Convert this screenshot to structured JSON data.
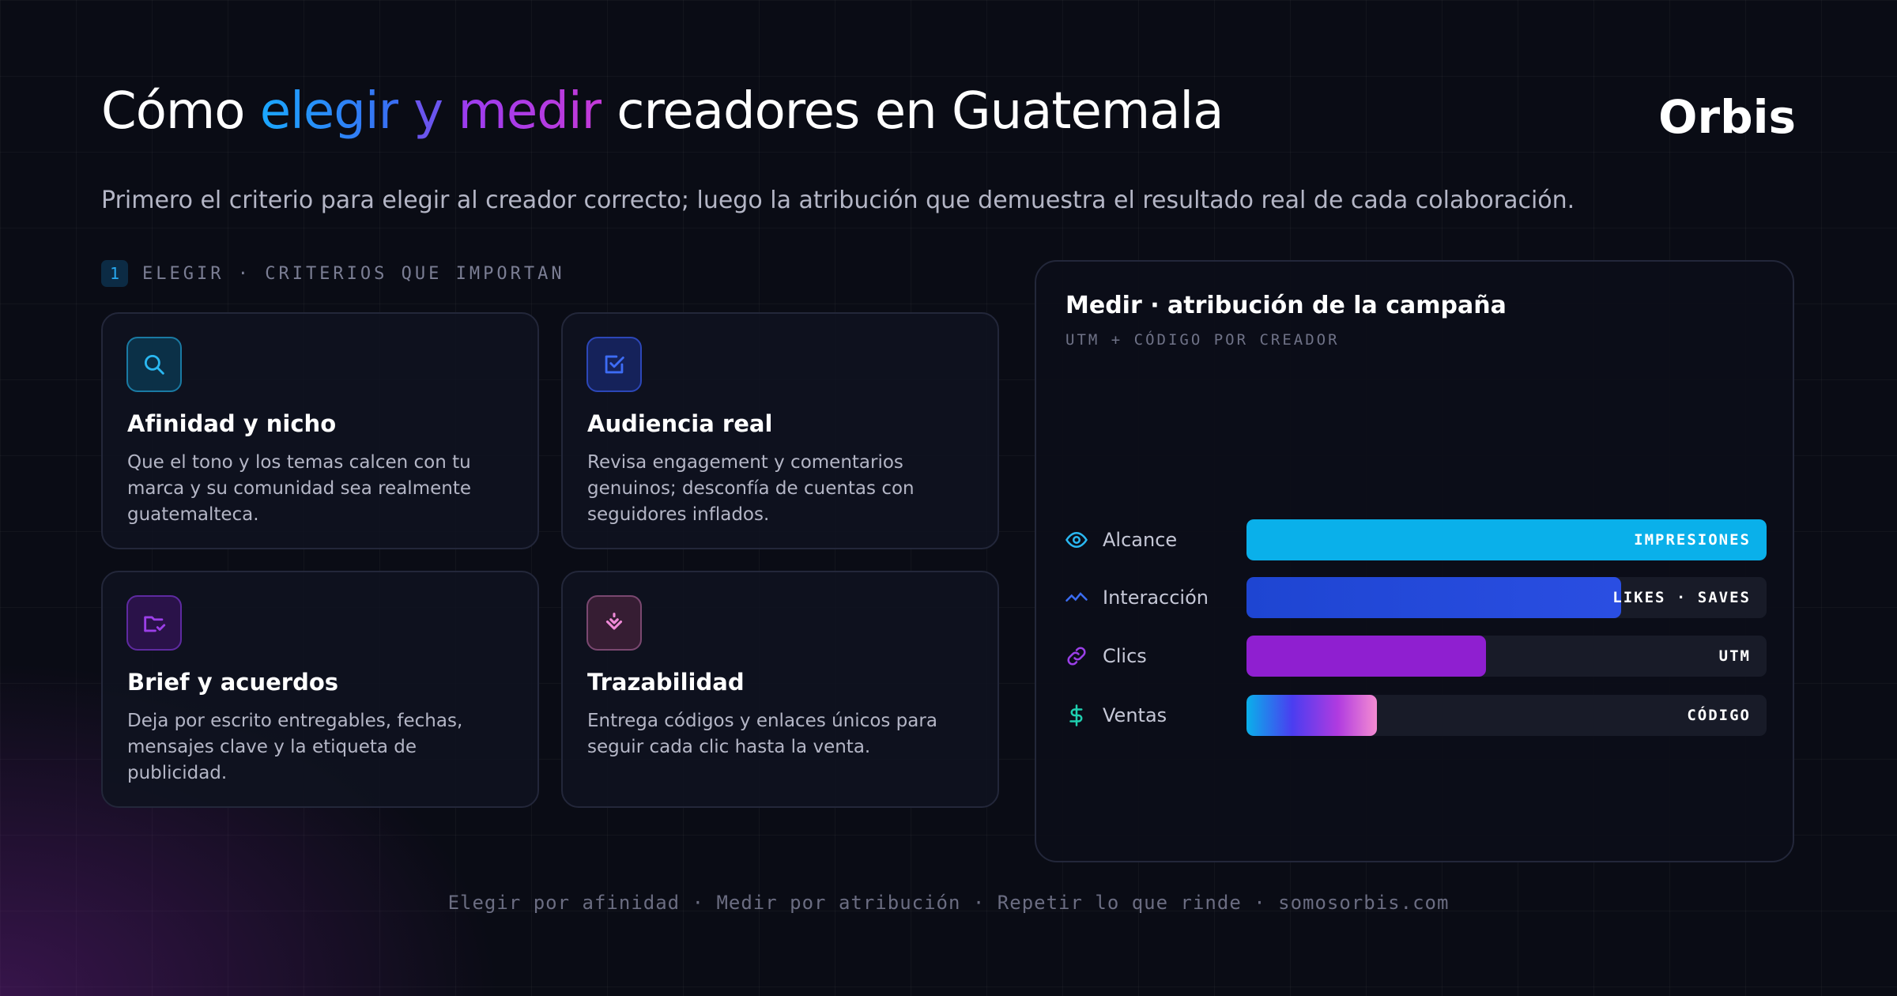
{
  "header": {
    "title_parts": [
      "Cómo ",
      "elegir",
      " y ",
      "medir",
      " creadores en Guatemala"
    ],
    "brand": "Orbis",
    "subtitle": "Primero el criterio para elegir al creador correcto; luego la atribución que demuestra el resultado real de cada colaboración."
  },
  "section": {
    "number": 1,
    "label": "ELEGIR · CRITERIOS QUE IMPORTAN"
  },
  "cards": [
    {
      "title": "Afinidad y nicho",
      "description": "Que el tono y los temas calcen con tu marca y su comunidad sea realmente guatemalteca."
    },
    {
      "title": "Audiencia real",
      "description": "Revisa engagement y comentarios genuinos; desconfía de cuentas con seguidores inflados."
    },
    {
      "title": "Brief y acuerdos",
      "description": "Deja por escrito entregables, fechas, mensajes clave y la etiqueta de publicidad."
    },
    {
      "title": "Trazabilidad",
      "description": "Entrega códigos y enlaces únicos para seguir cada clic hasta la venta."
    }
  ],
  "panel": {
    "title": "Medir · atribución de la campaña",
    "subtitle": "UTM + CÓDIGO POR CREADOR",
    "rows": [
      {
        "label": "Alcance",
        "tag": "IMPRESIONES",
        "value": 100
      },
      {
        "label": "Interacción",
        "tag": "LIKES · SAVES",
        "value": 72
      },
      {
        "label": "Clics",
        "tag": "UTM",
        "value": 46
      },
      {
        "label": "Ventas",
        "tag": "CÓDIGO",
        "value": 25
      }
    ]
  },
  "footer": "Elegir por afinidad · Medir por atribución · Repetir lo que rinde · somosorbis.com"
}
